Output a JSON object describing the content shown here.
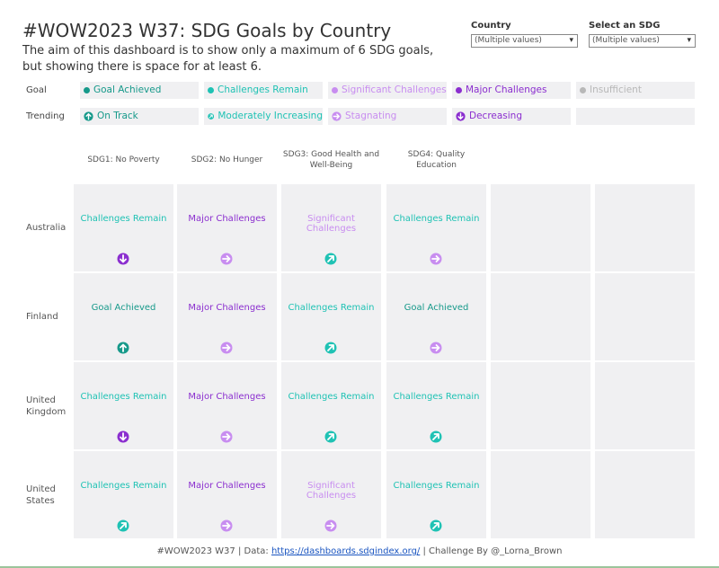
{
  "header": {
    "title": "#WOW2023 W37: SDG Goals by Country",
    "subtitle": "The aim of this dashboard is to show only a maximum of 6 SDG goals, but showing there is space for at least 6."
  },
  "filters": [
    {
      "label": "Country",
      "value": "(Multiple values)"
    },
    {
      "label": "Select an SDG",
      "value": "(Multiple values)"
    }
  ],
  "legend": {
    "goal": {
      "label": "Goal",
      "items": [
        {
          "text": "Goal Achieved",
          "color": "#16998a"
        },
        {
          "text": "Challenges Remain",
          "color": "#1fc2b4"
        },
        {
          "text": "Significant Challenges",
          "color": "#c88df0"
        },
        {
          "text": "Major Challenges",
          "color": "#8b2ecf"
        },
        {
          "text": "Insufficient",
          "color": "#b8b8b8"
        }
      ]
    },
    "trending": {
      "label": "Trending",
      "items": [
        {
          "text": "On Track",
          "color": "#16998a",
          "icon": "up"
        },
        {
          "text": "Moderately Increasing",
          "color": "#1fc2b4",
          "icon": "up-right"
        },
        {
          "text": "Stagnating",
          "color": "#c88df0",
          "icon": "right"
        },
        {
          "text": "Decreasing",
          "color": "#8b2ecf",
          "icon": "down"
        }
      ]
    }
  },
  "columns": [
    "SDG1: No Poverty",
    "SDG2: No Hunger",
    "SDG3: Good Health and Well-Being",
    "SDG4: Quality Education"
  ],
  "rows": [
    {
      "country": "Australia",
      "cells": [
        {
          "status": "Challenges Remain",
          "trend": "Decreasing"
        },
        {
          "status": "Major Challenges",
          "trend": "Stagnating"
        },
        {
          "status": "Significant Challenges",
          "trend": "Moderately Increasing"
        },
        {
          "status": "Challenges Remain",
          "trend": "Stagnating"
        }
      ]
    },
    {
      "country": "Finland",
      "cells": [
        {
          "status": "Goal Achieved",
          "trend": "On Track"
        },
        {
          "status": "Major Challenges",
          "trend": "Stagnating"
        },
        {
          "status": "Challenges Remain",
          "trend": "Moderately Increasing"
        },
        {
          "status": "Goal Achieved",
          "trend": "Stagnating"
        }
      ]
    },
    {
      "country": "United Kingdom",
      "cells": [
        {
          "status": "Challenges Remain",
          "trend": "Decreasing"
        },
        {
          "status": "Major Challenges",
          "trend": "Stagnating"
        },
        {
          "status": "Challenges Remain",
          "trend": "Moderately Increasing"
        },
        {
          "status": "Challenges Remain",
          "trend": "Moderately Increasing"
        }
      ]
    },
    {
      "country": "United States",
      "cells": [
        {
          "status": "Challenges Remain",
          "trend": "Moderately Increasing"
        },
        {
          "status": "Major Challenges",
          "trend": "Stagnating"
        },
        {
          "status": "Significant Challenges",
          "trend": "Stagnating"
        },
        {
          "status": "Challenges Remain",
          "trend": "Moderately Increasing"
        }
      ]
    }
  ],
  "footer": {
    "prefix": "#WOW2023 W37 | Data: ",
    "link": "https://dashboards.sdgindex.org/",
    "suffix": " | Challenge By @_Lorna_Brown"
  }
}
